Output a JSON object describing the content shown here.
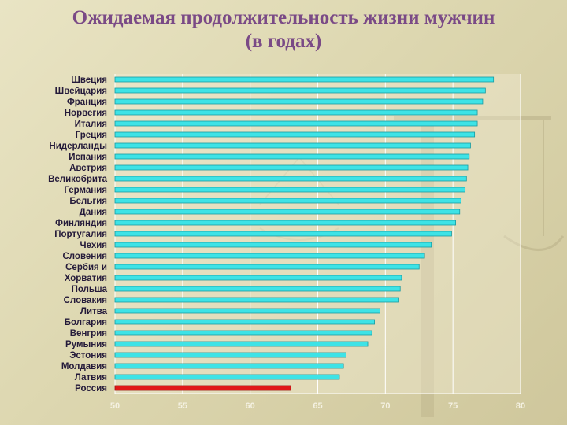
{
  "title_line1": "Ожидаемая продолжительность жизни мужчин",
  "title_line2": "(в годах)",
  "colors": {
    "bar": "#3ee3e6",
    "bar_highlight": "#e01818",
    "title": "#7a4a86"
  },
  "chart_data": {
    "type": "bar",
    "orientation": "horizontal",
    "categories": [
      "Швеция",
      "Швейцария",
      "Франция",
      "Норвегия",
      "Италия",
      "Греция",
      "Нидерланды",
      "Испания",
      "Австрия",
      "Великобрита",
      "Германия",
      "Бельгия",
      "Дания",
      "Финляндия",
      "Португалия",
      "Чехия",
      "Словения",
      "Сербия и",
      "Хорватия",
      "Польша",
      "Словакия",
      "Литва",
      "Болгария",
      "Венгрия",
      "Румыния",
      "Эстония",
      "Молдавия",
      "Латвия",
      "Россия"
    ],
    "values": [
      78.0,
      77.4,
      77.2,
      76.8,
      76.8,
      76.6,
      76.3,
      76.2,
      76.1,
      76.0,
      75.9,
      75.6,
      75.5,
      75.2,
      74.9,
      73.4,
      72.9,
      72.5,
      71.2,
      71.1,
      71.0,
      69.6,
      69.2,
      69.0,
      68.7,
      67.1,
      66.9,
      66.6,
      63.0
    ],
    "highlight": "Россия",
    "xlim": [
      50,
      80
    ],
    "xticks": [
      "50",
      "55",
      "60",
      "65",
      "70",
      "75",
      "80"
    ],
    "title": "Ожидаемая продолжительность жизни мужчин (в годах)",
    "xlabel": "",
    "ylabel": ""
  }
}
